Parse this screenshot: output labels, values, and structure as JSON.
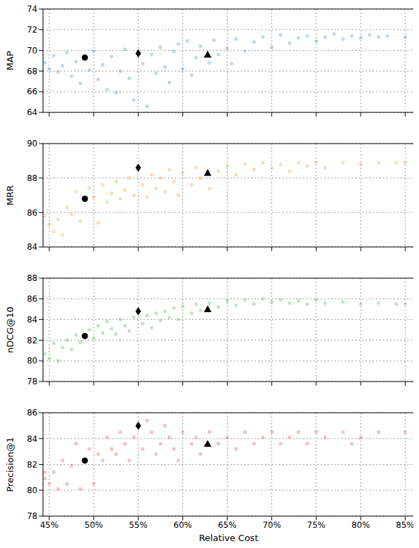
{
  "chart_data": [
    {
      "type": "scatter",
      "y_label": "MAP",
      "xlim": [
        44.3,
        86
      ],
      "ylim": [
        64,
        74
      ],
      "xticks": [
        {
          "value": 45,
          "label": "45%"
        },
        {
          "value": 50,
          "label": "50%"
        },
        {
          "value": 55,
          "label": "55%"
        },
        {
          "value": 60,
          "label": "60%"
        },
        {
          "value": 65,
          "label": "65%"
        },
        {
          "value": 70,
          "label": "70%"
        },
        {
          "value": 75,
          "label": "75%"
        },
        {
          "value": 80,
          "label": "80%"
        },
        {
          "value": 85,
          "label": "85%"
        }
      ],
      "yticks": [
        64,
        66,
        68,
        70,
        72,
        74
      ],
      "grid": true,
      "tick_labels": "y",
      "series": [
        {
          "color": "#1f77b4",
          "marker": "circle",
          "x": [
            44.5,
            45,
            45.5,
            46,
            46.5,
            47,
            47.5,
            48,
            48.5,
            49.5,
            50,
            50.5,
            51,
            51.5,
            52,
            52.5,
            53,
            53.5,
            54,
            54.5,
            55.5,
            56,
            56.5,
            57,
            57.5,
            58,
            58.5,
            59,
            59.5,
            60,
            60.5,
            61,
            61.5,
            62,
            63,
            63.5,
            64,
            65,
            65.5,
            66,
            67,
            68,
            69,
            70,
            71,
            72,
            73,
            74,
            75,
            76,
            77,
            78,
            79,
            80,
            81,
            82,
            83,
            85
          ],
          "values": [
            68.8,
            68.2,
            69.5,
            67.9,
            68.5,
            69.8,
            67.5,
            68.9,
            66.8,
            68.1,
            69.9,
            67.2,
            68.6,
            66.2,
            69.4,
            65.9,
            68.0,
            70.1,
            67.3,
            65.2,
            68.7,
            64.6,
            69.6,
            67.8,
            70.3,
            68.4,
            66.9,
            69.9,
            70.6,
            68.2,
            70.9,
            67.6,
            69.3,
            70.4,
            68.8,
            71.0,
            69.6,
            70.2,
            68.7,
            71.1,
            69.9,
            70.8,
            71.3,
            70.3,
            71.5,
            70.7,
            71.2,
            71.4,
            70.9,
            71.3,
            71.6,
            71.1,
            71.4,
            71.2,
            71.5,
            71.3,
            71.4,
            71.3
          ]
        },
        {
          "color": "#000000",
          "marker": "circle",
          "x": [
            49
          ],
          "values": [
            69.3
          ]
        },
        {
          "color": "#000000",
          "marker": "diamond",
          "x": [
            55
          ],
          "values": [
            69.7
          ]
        },
        {
          "color": "#000000",
          "marker": "triangle",
          "x": [
            62.8
          ],
          "values": [
            69.6
          ]
        }
      ]
    },
    {
      "type": "scatter",
      "y_label": "MRR",
      "xlim": [
        44.3,
        86
      ],
      "ylim": [
        84,
        90
      ],
      "xticks": [
        {
          "value": 45,
          "label": "45%"
        },
        {
          "value": 50,
          "label": "50%"
        },
        {
          "value": 55,
          "label": "55%"
        },
        {
          "value": 60,
          "label": "60%"
        },
        {
          "value": 65,
          "label": "65%"
        },
        {
          "value": 70,
          "label": "70%"
        },
        {
          "value": 75,
          "label": "75%"
        },
        {
          "value": 80,
          "label": "80%"
        },
        {
          "value": 85,
          "label": "85%"
        }
      ],
      "yticks": [
        84,
        86,
        88,
        90
      ],
      "grid": true,
      "tick_labels": "y",
      "series": [
        {
          "color": "#ff7f0e",
          "marker": "circle",
          "x": [
            44.5,
            45,
            45.5,
            46,
            46.5,
            47,
            47.5,
            48,
            48.5,
            49.5,
            50,
            50.5,
            51,
            51.5,
            52,
            52.5,
            53,
            53.5,
            54,
            54.5,
            55.5,
            56,
            56.5,
            57,
            57.5,
            58,
            58.5,
            59,
            59.5,
            60,
            61,
            61.5,
            62,
            63,
            64,
            65,
            66,
            67,
            68,
            69,
            70,
            71,
            72,
            73,
            74,
            75,
            76,
            78,
            80,
            82,
            84,
            85
          ],
          "values": [
            85.8,
            85.3,
            84.9,
            85.6,
            84.7,
            86.3,
            85.9,
            87.2,
            85.5,
            87.4,
            86.9,
            85.4,
            87.6,
            86.6,
            87.1,
            87.8,
            86.8,
            87.3,
            88.0,
            87.0,
            87.6,
            86.9,
            88.2,
            87.4,
            88.0,
            87.2,
            88.5,
            87.8,
            87.0,
            88.3,
            87.6,
            88.6,
            88.0,
            87.4,
            88.4,
            88.7,
            88.2,
            88.8,
            88.5,
            88.9,
            88.6,
            88.8,
            88.4,
            88.9,
            88.7,
            88.9,
            88.6,
            88.9,
            88.8,
            88.9,
            88.9,
            88.9
          ]
        },
        {
          "color": "#000000",
          "marker": "circle",
          "x": [
            49
          ],
          "values": [
            86.8
          ]
        },
        {
          "color": "#000000",
          "marker": "diamond",
          "x": [
            55
          ],
          "values": [
            88.6
          ]
        },
        {
          "color": "#000000",
          "marker": "triangle",
          "x": [
            62.8
          ],
          "values": [
            88.3
          ]
        }
      ]
    },
    {
      "type": "scatter",
      "y_label": "nDCG@10",
      "xlim": [
        44.3,
        86
      ],
      "ylim": [
        78,
        88
      ],
      "xticks": [
        {
          "value": 45,
          "label": "45%"
        },
        {
          "value": 50,
          "label": "50%"
        },
        {
          "value": 55,
          "label": "55%"
        },
        {
          "value": 60,
          "label": "60%"
        },
        {
          "value": 65,
          "label": "65%"
        },
        {
          "value": 70,
          "label": "70%"
        },
        {
          "value": 75,
          "label": "75%"
        },
        {
          "value": 80,
          "label": "80%"
        },
        {
          "value": 85,
          "label": "85%"
        }
      ],
      "yticks": [
        78,
        80,
        82,
        84,
        86,
        88
      ],
      "grid": true,
      "tick_labels": "y",
      "series": [
        {
          "color": "#2ca02c",
          "marker": "circle",
          "x": [
            44.5,
            45,
            45.5,
            46,
            46.5,
            47,
            47.5,
            48,
            48.5,
            49.5,
            50,
            50.5,
            51,
            51.5,
            52,
            52.5,
            53,
            53.5,
            54,
            54.5,
            55.5,
            56,
            56.5,
            57,
            57.5,
            58,
            58.5,
            59,
            59.5,
            60,
            61,
            61.5,
            62,
            63,
            64,
            65,
            66,
            67,
            68,
            69,
            70,
            71,
            72,
            73,
            74,
            75,
            76,
            78,
            80,
            82,
            84,
            85
          ],
          "values": [
            80.7,
            80.2,
            81.7,
            80.0,
            81.3,
            82.0,
            81.1,
            82.5,
            81.8,
            83.0,
            82.2,
            83.4,
            82.7,
            83.8,
            83.1,
            82.6,
            84.0,
            83.4,
            82.9,
            84.2,
            83.6,
            84.4,
            83.2,
            84.6,
            83.9,
            84.8,
            84.2,
            85.1,
            84.0,
            85.3,
            84.6,
            85.5,
            84.9,
            85.6,
            85.2,
            85.8,
            85.4,
            85.9,
            85.5,
            86.0,
            85.7,
            85.9,
            85.6,
            85.8,
            85.5,
            85.9,
            85.6,
            85.7,
            85.5,
            85.6,
            85.5,
            85.5
          ]
        },
        {
          "color": "#000000",
          "marker": "circle",
          "x": [
            49
          ],
          "values": [
            82.4
          ]
        },
        {
          "color": "#000000",
          "marker": "diamond",
          "x": [
            55
          ],
          "values": [
            84.8
          ]
        },
        {
          "color": "#000000",
          "marker": "triangle",
          "x": [
            62.8
          ],
          "values": [
            85.0
          ]
        }
      ]
    },
    {
      "type": "scatter",
      "y_label": "Precision@1",
      "x_label": "Relative Cost",
      "xlim": [
        44.3,
        86
      ],
      "ylim": [
        78,
        86
      ],
      "xticks": [
        {
          "value": 45,
          "label": "45%"
        },
        {
          "value": 50,
          "label": "50%"
        },
        {
          "value": 55,
          "label": "55%"
        },
        {
          "value": 60,
          "label": "60%"
        },
        {
          "value": 65,
          "label": "65%"
        },
        {
          "value": 70,
          "label": "70%"
        },
        {
          "value": 75,
          "label": "75%"
        },
        {
          "value": 80,
          "label": "80%"
        },
        {
          "value": 85,
          "label": "85%"
        }
      ],
      "yticks": [
        78,
        80,
        82,
        84,
        86
      ],
      "grid": true,
      "series": [
        {
          "color": "#d62728",
          "marker": "circle",
          "x": [
            44.5,
            44.5,
            45,
            45.5,
            46,
            46.5,
            47,
            47.5,
            48,
            48.5,
            49.5,
            50,
            50.5,
            51,
            51.5,
            52,
            52.5,
            53,
            53.5,
            54,
            54.5,
            55.5,
            56,
            56.5,
            57,
            57.5,
            58,
            58.5,
            59,
            59.5,
            60,
            61,
            61.5,
            62,
            63,
            64,
            65,
            66,
            67,
            68,
            69,
            70,
            71,
            72,
            73,
            74,
            75,
            76,
            78,
            79,
            80,
            82,
            85
          ],
          "values": [
            81.4,
            80.9,
            80.5,
            81.4,
            80.1,
            82.3,
            80.5,
            81.9,
            83.6,
            80.1,
            83.2,
            80.5,
            82.8,
            82.3,
            84.1,
            83.2,
            82.8,
            84.5,
            83.6,
            82.3,
            84.1,
            83.2,
            85.4,
            84.5,
            82.8,
            83.6,
            85.0,
            84.1,
            83.2,
            82.3,
            84.5,
            83.6,
            84.1,
            82.8,
            84.5,
            83.6,
            84.1,
            83.2,
            84.5,
            83.6,
            84.1,
            84.5,
            83.6,
            84.1,
            84.5,
            83.6,
            84.5,
            84.1,
            84.5,
            83.6,
            84.1,
            84.5,
            84.5
          ]
        },
        {
          "color": "#000000",
          "marker": "circle",
          "x": [
            49
          ],
          "values": [
            82.3
          ]
        },
        {
          "color": "#000000",
          "marker": "diamond",
          "x": [
            55
          ],
          "values": [
            85.0
          ]
        },
        {
          "color": "#000000",
          "marker": "triangle",
          "x": [
            62.8
          ],
          "values": [
            83.6
          ]
        }
      ]
    }
  ]
}
